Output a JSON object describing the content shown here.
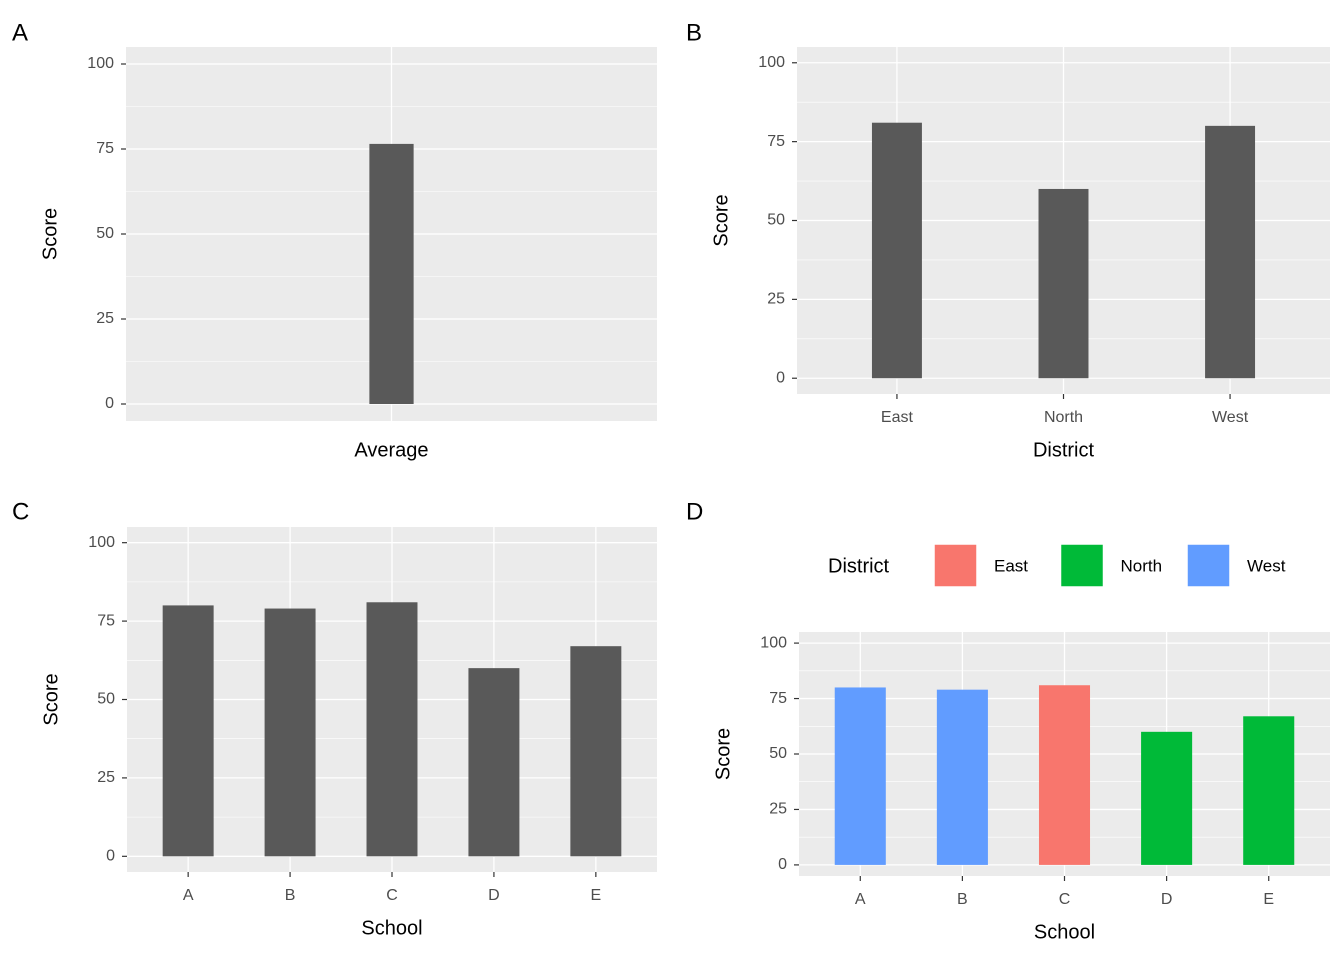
{
  "chart_data": [
    {
      "type": "bar",
      "tag": "A",
      "ylabel": "Score",
      "xlabel": "Average",
      "categories": [
        null
      ],
      "values": [
        76.5
      ],
      "color": "#595959",
      "ylim": [
        -5,
        105
      ],
      "yticks": [
        0,
        25,
        50,
        75,
        100
      ],
      "grid": true
    },
    {
      "type": "bar",
      "tag": "B",
      "ylabel": "Score",
      "xlabel": "District",
      "categories": [
        "East",
        "North",
        "West"
      ],
      "values": [
        81,
        60,
        80
      ],
      "color": "#595959",
      "ylim": [
        -5,
        105
      ],
      "yticks": [
        0,
        25,
        50,
        75,
        100
      ],
      "grid": true
    },
    {
      "type": "bar",
      "tag": "C",
      "ylabel": "Score",
      "xlabel": "School",
      "categories": [
        "A",
        "B",
        "C",
        "D",
        "E"
      ],
      "values": [
        80,
        79,
        81,
        60,
        67
      ],
      "color": "#595959",
      "ylim": [
        -5,
        105
      ],
      "yticks": [
        0,
        25,
        50,
        75,
        100
      ],
      "grid": true
    },
    {
      "type": "bar",
      "tag": "D",
      "ylabel": "Score",
      "xlabel": "School",
      "categories": [
        "A",
        "B",
        "C",
        "D",
        "E"
      ],
      "values": [
        80,
        79,
        81,
        60,
        67
      ],
      "groups": [
        "West",
        "West",
        "East",
        "North",
        "North"
      ],
      "legend": {
        "title": "District",
        "position": "top",
        "entries": [
          {
            "name": "East",
            "color": "#f8766d"
          },
          {
            "name": "North",
            "color": "#00ba38"
          },
          {
            "name": "West",
            "color": "#619cff"
          }
        ]
      },
      "ylim": [
        -5,
        105
      ],
      "yticks": [
        0,
        25,
        50,
        75,
        100
      ],
      "grid": true
    }
  ]
}
